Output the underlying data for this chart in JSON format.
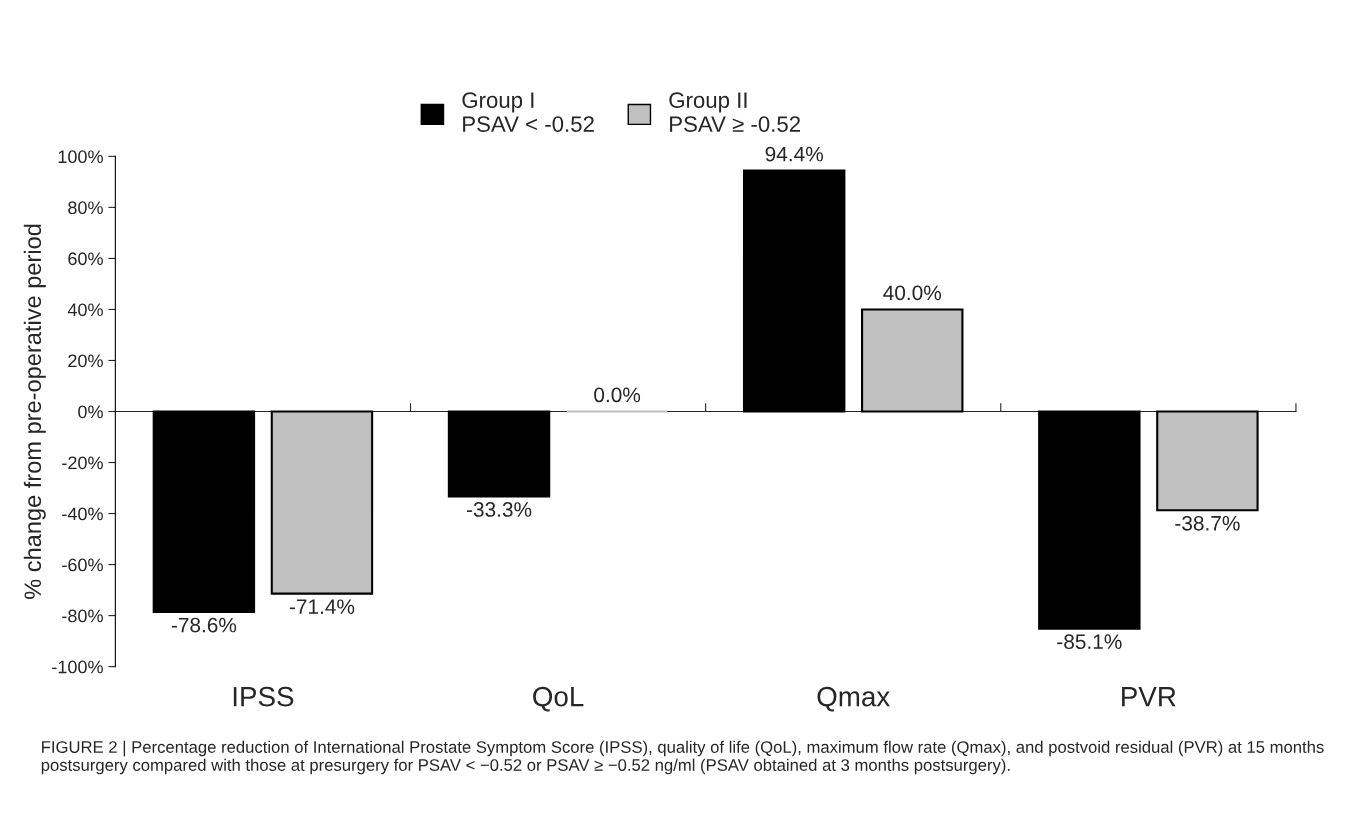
{
  "chart_data": {
    "type": "bar",
    "categories": [
      "IPSS",
      "QoL",
      "Qmax",
      "PVR"
    ],
    "series": [
      {
        "name": "Group I\nPSAV < -0.52",
        "color": "#000000",
        "values": [
          -78.6,
          -33.3,
          94.4,
          -85.1
        ],
        "value_labels": [
          "-78.6%",
          "-33.3%",
          "94.4%",
          "-85.1%"
        ]
      },
      {
        "name": "Group II\nPSAV ≥ -0.52",
        "color": "#c0c0c0",
        "values": [
          -71.4,
          0.0,
          40.0,
          -38.7
        ],
        "value_labels": [
          "-71.4%",
          "0.0%",
          "40.0%",
          "-38.7%"
        ]
      }
    ],
    "ylabel": "% change from pre-operative period",
    "ylim": [
      -100,
      100
    ],
    "yticks": [
      {
        "value": -100,
        "label": "-100%"
      },
      {
        "value": -80,
        "label": "-80%"
      },
      {
        "value": -60,
        "label": "-60%"
      },
      {
        "value": -40,
        "label": "-40%"
      },
      {
        "value": -20,
        "label": "-20%"
      },
      {
        "value": 0,
        "label": "0%"
      },
      {
        "value": 20,
        "label": "20%"
      },
      {
        "value": 40,
        "label": "40%"
      },
      {
        "value": 60,
        "label": "60%"
      },
      {
        "value": 80,
        "label": "80%"
      },
      {
        "value": 100,
        "label": "100%"
      }
    ],
    "legend": "top",
    "annotations": [
      "FIGURE 2 | Percentage reduction of International Prostate Symptom Score (IPSS), quality of life (QoL), maximum flow rate (Qmax), and postvoid residual (PVR) at 15 months postsurgery compared with those at presurgery for PSAV < −0.52 or PSAV ≥ −0.52 ng/ml (PSAV obtained at 3 months postsurgery)."
    ]
  }
}
